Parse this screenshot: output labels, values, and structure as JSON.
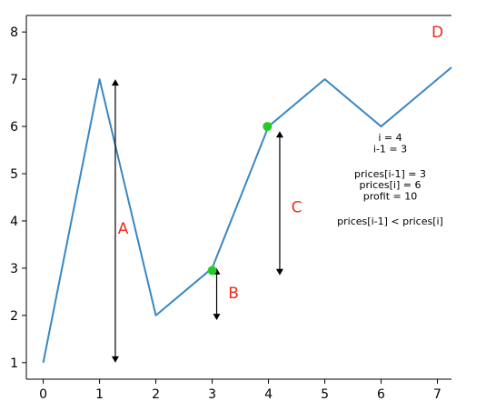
{
  "chart_data": {
    "type": "line",
    "x": [
      0,
      1,
      2,
      3,
      4,
      5,
      6,
      7,
      7.25
    ],
    "series": [
      {
        "values": [
          1,
          7,
          2,
          3,
          6,
          7,
          6,
          7,
          7.25
        ],
        "color": "#3a87c2"
      }
    ],
    "xlim": [
      -0.3,
      7.25
    ],
    "ylim": [
      0.65,
      8.35
    ],
    "x_ticks": [
      0,
      1,
      2,
      3,
      4,
      5,
      6,
      7
    ],
    "x_tick_labels": [
      "0",
      "1",
      "2",
      "3",
      "4",
      "5",
      "6",
      "7"
    ],
    "y_ticks": [
      1,
      2,
      3,
      4,
      5,
      6,
      7,
      8
    ],
    "y_tick_labels": [
      "1",
      "2",
      "3",
      "4",
      "5",
      "6",
      "7",
      "8"
    ],
    "grid": false,
    "highlighted_points": [
      {
        "x": 3,
        "y": 2.95,
        "color": "#22cc22"
      },
      {
        "x": 3.98,
        "y": 6,
        "color": "#22cc22"
      }
    ],
    "arrows": [
      {
        "x": 1.28,
        "y_from": 1,
        "y_to": 7
      },
      {
        "x": 3.08,
        "y_from": 1.9,
        "y_to": 3
      },
      {
        "x": 4.2,
        "y_from": 2.85,
        "y_to": 5.9
      }
    ],
    "annotations": [
      {
        "text": "A",
        "x": 1.42,
        "y": 3.85,
        "color": "#ee2a1a"
      },
      {
        "text": "B",
        "x": 3.38,
        "y": 2.48,
        "color": "#ee2a1a"
      },
      {
        "text": "C",
        "x": 4.5,
        "y": 4.3,
        "color": "#ee2a1a"
      },
      {
        "text": "D",
        "x": 7.0,
        "y": 8.0,
        "color": "#ee2a1a"
      }
    ],
    "info_text": {
      "x": 6.0,
      "lines": [
        "i = 4",
        "i-1 = 3",
        "",
        "prices[i-1] = 3",
        "prices[i] = 6",
        "profit = 10",
        "",
        "prices[i-1] < prices[i]"
      ],
      "line_y": [
        5.77,
        5.53,
        0,
        5.0,
        4.77,
        4.53,
        0,
        4.0
      ]
    }
  }
}
